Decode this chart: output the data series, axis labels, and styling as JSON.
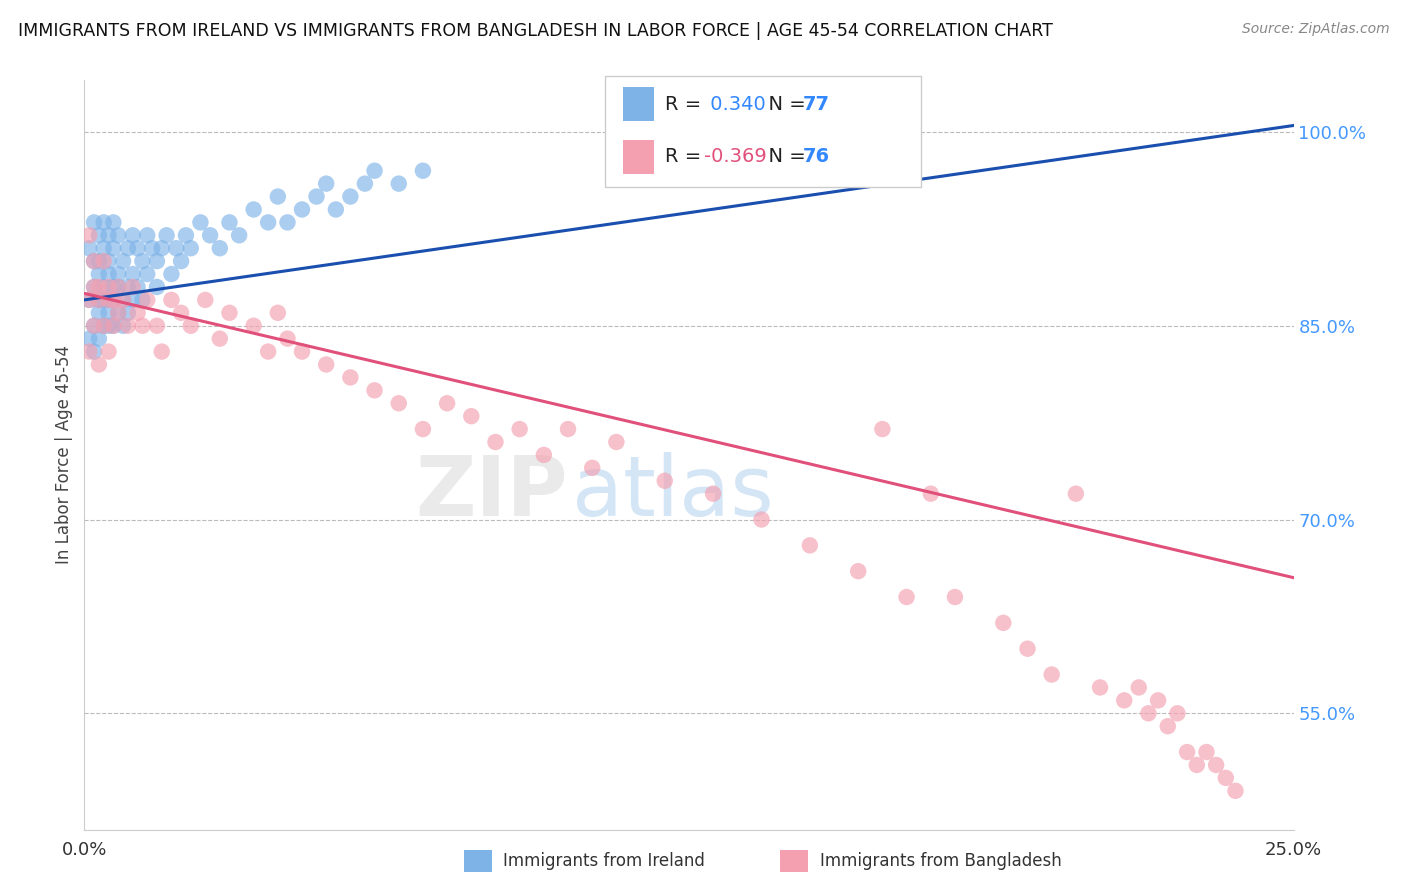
{
  "title": "IMMIGRANTS FROM IRELAND VS IMMIGRANTS FROM BANGLADESH IN LABOR FORCE | AGE 45-54 CORRELATION CHART",
  "source": "Source: ZipAtlas.com",
  "ylabel": "In Labor Force | Age 45-54",
  "xlim": [
    0.0,
    0.25
  ],
  "ylim": [
    0.46,
    1.04
  ],
  "ytick_labels": [
    "55.0%",
    "70.0%",
    "85.0%",
    "100.0%"
  ],
  "ytick_values": [
    0.55,
    0.7,
    0.85,
    1.0
  ],
  "ireland_R": 0.34,
  "ireland_N": 77,
  "bangladesh_R": -0.369,
  "bangladesh_N": 76,
  "ireland_color": "#7EB3E8",
  "bangladesh_color": "#F4A0B0",
  "ireland_line_color": "#1A4FAF",
  "bangladesh_line_color": "#E0507A",
  "background_color": "#FFFFFF",
  "ireland_line_x0": 0.0,
  "ireland_line_y0": 0.87,
  "ireland_line_x1": 0.25,
  "ireland_line_y1": 1.005,
  "bangladesh_line_x0": 0.0,
  "bangladesh_line_y0": 0.875,
  "bangladesh_line_x1": 0.25,
  "bangladesh_line_y1": 0.655,
  "ireland_x": [
    0.001,
    0.001,
    0.001,
    0.002,
    0.002,
    0.002,
    0.002,
    0.002,
    0.003,
    0.003,
    0.003,
    0.003,
    0.003,
    0.003,
    0.004,
    0.004,
    0.004,
    0.004,
    0.004,
    0.005,
    0.005,
    0.005,
    0.005,
    0.005,
    0.005,
    0.006,
    0.006,
    0.006,
    0.006,
    0.006,
    0.007,
    0.007,
    0.007,
    0.007,
    0.008,
    0.008,
    0.008,
    0.009,
    0.009,
    0.009,
    0.01,
    0.01,
    0.01,
    0.011,
    0.011,
    0.012,
    0.012,
    0.013,
    0.013,
    0.014,
    0.015,
    0.015,
    0.016,
    0.017,
    0.018,
    0.019,
    0.02,
    0.021,
    0.022,
    0.024,
    0.026,
    0.028,
    0.03,
    0.032,
    0.035,
    0.038,
    0.04,
    0.042,
    0.045,
    0.048,
    0.05,
    0.052,
    0.055,
    0.058,
    0.06,
    0.065,
    0.07
  ],
  "ireland_y": [
    0.87,
    0.84,
    0.91,
    0.88,
    0.85,
    0.9,
    0.93,
    0.83,
    0.89,
    0.86,
    0.92,
    0.87,
    0.84,
    0.9,
    0.91,
    0.87,
    0.85,
    0.88,
    0.93,
    0.89,
    0.86,
    0.92,
    0.87,
    0.85,
    0.9,
    0.91,
    0.88,
    0.85,
    0.87,
    0.93,
    0.89,
    0.86,
    0.92,
    0.88,
    0.9,
    0.87,
    0.85,
    0.91,
    0.88,
    0.86,
    0.92,
    0.89,
    0.87,
    0.91,
    0.88,
    0.9,
    0.87,
    0.92,
    0.89,
    0.91,
    0.9,
    0.88,
    0.91,
    0.92,
    0.89,
    0.91,
    0.9,
    0.92,
    0.91,
    0.93,
    0.92,
    0.91,
    0.93,
    0.92,
    0.94,
    0.93,
    0.95,
    0.93,
    0.94,
    0.95,
    0.96,
    0.94,
    0.95,
    0.96,
    0.97,
    0.96,
    0.97
  ],
  "bangladesh_x": [
    0.001,
    0.001,
    0.001,
    0.002,
    0.002,
    0.002,
    0.003,
    0.003,
    0.003,
    0.004,
    0.004,
    0.005,
    0.005,
    0.005,
    0.006,
    0.006,
    0.007,
    0.007,
    0.008,
    0.009,
    0.01,
    0.011,
    0.012,
    0.013,
    0.015,
    0.016,
    0.018,
    0.02,
    0.022,
    0.025,
    0.028,
    0.03,
    0.035,
    0.038,
    0.04,
    0.042,
    0.045,
    0.05,
    0.055,
    0.06,
    0.065,
    0.07,
    0.075,
    0.08,
    0.085,
    0.09,
    0.095,
    0.1,
    0.105,
    0.11,
    0.12,
    0.13,
    0.14,
    0.15,
    0.16,
    0.165,
    0.17,
    0.175,
    0.18,
    0.19,
    0.195,
    0.2,
    0.205,
    0.21,
    0.215,
    0.218,
    0.22,
    0.222,
    0.224,
    0.226,
    0.228,
    0.23,
    0.232,
    0.234,
    0.236,
    0.238
  ],
  "bangladesh_y": [
    0.92,
    0.87,
    0.83,
    0.9,
    0.85,
    0.88,
    0.87,
    0.82,
    0.88,
    0.85,
    0.9,
    0.87,
    0.83,
    0.88,
    0.85,
    0.87,
    0.86,
    0.88,
    0.87,
    0.85,
    0.88,
    0.86,
    0.85,
    0.87,
    0.85,
    0.83,
    0.87,
    0.86,
    0.85,
    0.87,
    0.84,
    0.86,
    0.85,
    0.83,
    0.86,
    0.84,
    0.83,
    0.82,
    0.81,
    0.8,
    0.79,
    0.77,
    0.79,
    0.78,
    0.76,
    0.77,
    0.75,
    0.77,
    0.74,
    0.76,
    0.73,
    0.72,
    0.7,
    0.68,
    0.66,
    0.77,
    0.64,
    0.72,
    0.64,
    0.62,
    0.6,
    0.58,
    0.72,
    0.57,
    0.56,
    0.57,
    0.55,
    0.56,
    0.54,
    0.55,
    0.52,
    0.51,
    0.52,
    0.51,
    0.5,
    0.49
  ]
}
